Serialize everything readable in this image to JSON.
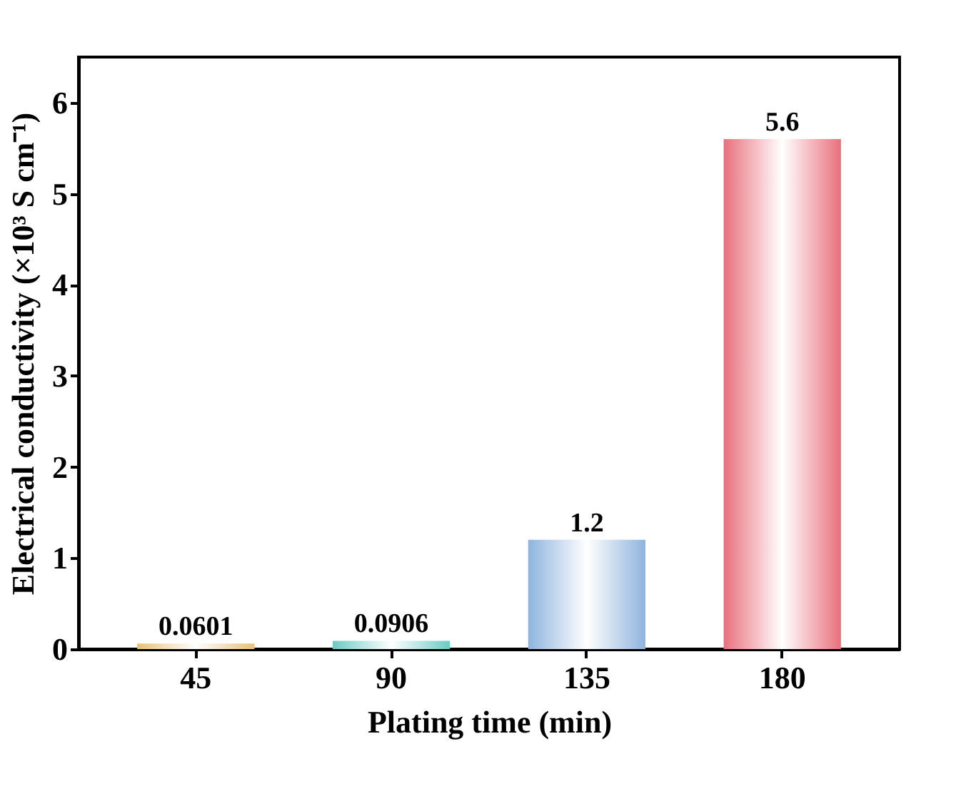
{
  "chart_data": {
    "type": "bar",
    "categories": [
      "45",
      "90",
      "135",
      "180"
    ],
    "values": [
      0.0601,
      0.0906,
      1.2,
      5.6
    ],
    "colors": [
      "#e8c07a",
      "#6ccac4",
      "#8fb4de",
      "#e8707c"
    ],
    "value_labels": [
      "0.0601",
      "0.0906",
      "1.2",
      "5.6"
    ],
    "xlabel": "Plating time (min)",
    "ylabel": "Electrical conductivity (×10³ S cm⁻¹)",
    "ylim": [
      0,
      6.5
    ],
    "yticks": [
      0,
      1,
      2,
      3,
      4,
      5,
      6
    ],
    "grid": false
  }
}
